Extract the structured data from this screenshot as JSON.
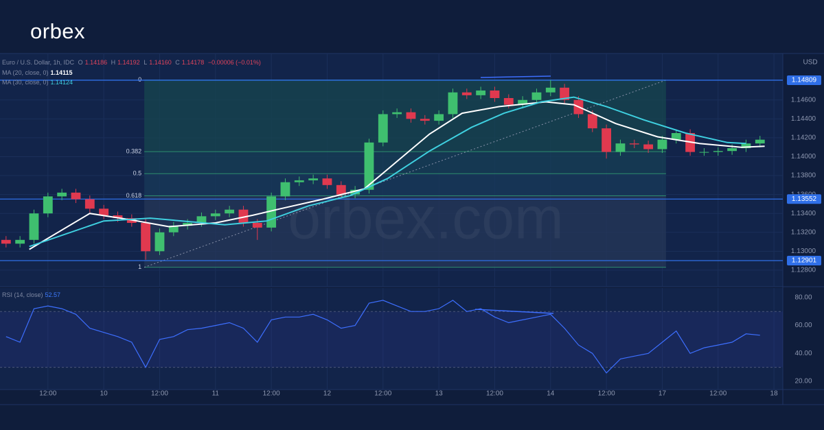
{
  "logo": "orbex",
  "watermark": "orbex.com",
  "chart_data": [
    {
      "type": "candlestick",
      "title": "Euro / U.S. Dollar, 1h, IDC",
      "currency": "USD",
      "ohlc_labels": [
        "O",
        "H",
        "L",
        "C"
      ],
      "ohlc_last": [
        1.14186,
        1.14192,
        1.1416,
        1.14178
      ],
      "ohlc_last_labels": [
        "1.14186",
        "1.14192",
        "1.14160",
        "1.14178"
      ],
      "change_label": "−0.00006 (−0.01%)",
      "up_color": "#3fbf6f",
      "down_color": "#e0394f",
      "grid": true,
      "xlim": [
        1.7,
        169.9
      ],
      "ylim": [
        1.12647,
        1.15077
      ],
      "xticks": [
        {
          "value": 12,
          "label": "12:00"
        },
        {
          "value": 24,
          "label": "10"
        },
        {
          "value": 36,
          "label": "12:00"
        },
        {
          "value": 48,
          "label": "11"
        },
        {
          "value": 60,
          "label": "12:00"
        },
        {
          "value": 72,
          "label": "12"
        },
        {
          "value": 84,
          "label": "12:00"
        },
        {
          "value": 96,
          "label": "13"
        },
        {
          "value": 108,
          "label": "12:00"
        },
        {
          "value": 120,
          "label": "14"
        },
        {
          "value": 132,
          "label": "12:00"
        },
        {
          "value": 144,
          "label": "17"
        },
        {
          "value": 156,
          "label": "12:00"
        },
        {
          "value": 168,
          "label": "18"
        }
      ],
      "yticks": [
        {
          "value": 1.128,
          "label": "1.12800"
        },
        {
          "value": 1.13,
          "label": "1.13000"
        },
        {
          "value": 1.132,
          "label": "1.13200"
        },
        {
          "value": 1.134,
          "label": "1.13400"
        },
        {
          "value": 1.136,
          "label": "1.13600"
        },
        {
          "value": 1.138,
          "label": "1.13800"
        },
        {
          "value": 1.14,
          "label": "1.14000"
        },
        {
          "value": 1.142,
          "label": "1.14200"
        },
        {
          "value": 1.144,
          "label": "1.14400"
        },
        {
          "value": 1.146,
          "label": "1.14600"
        }
      ],
      "x": [
        3,
        6,
        9,
        12,
        15,
        18,
        21,
        24,
        27,
        30,
        33,
        36,
        39,
        42,
        45,
        48,
        51,
        54,
        57,
        60,
        63,
        66,
        69,
        72,
        75,
        78,
        81,
        84,
        87,
        90,
        93,
        96,
        99,
        102,
        105,
        108,
        111,
        114,
        117,
        120,
        123,
        126,
        129,
        132,
        135,
        138,
        141,
        144,
        147,
        150,
        153,
        156,
        159,
        162,
        165
      ],
      "open": [
        1.1312,
        1.1308,
        1.1312,
        1.134,
        1.1358,
        1.1362,
        1.1355,
        1.1345,
        1.1338,
        1.1335,
        1.133,
        1.13,
        1.132,
        1.1327,
        1.133,
        1.1337,
        1.134,
        1.1344,
        1.133,
        1.1325,
        1.1358,
        1.1373,
        1.1375,
        1.1377,
        1.137,
        1.136,
        1.1365,
        1.1415,
        1.1445,
        1.1447,
        1.144,
        1.1438,
        1.1445,
        1.1468,
        1.1465,
        1.147,
        1.1462,
        1.1455,
        1.146,
        1.1468,
        1.1473,
        1.146,
        1.1445,
        1.143,
        1.1405,
        1.1414,
        1.1413,
        1.1408,
        1.1418,
        1.1425,
        1.1405,
        1.1405,
        1.1406,
        1.1409,
        1.1414
      ],
      "high": [
        1.1316,
        1.1316,
        1.1344,
        1.1362,
        1.1366,
        1.1366,
        1.1359,
        1.1349,
        1.1342,
        1.1339,
        1.1334,
        1.1324,
        1.1331,
        1.1334,
        1.1341,
        1.1344,
        1.1348,
        1.1348,
        1.1334,
        1.1362,
        1.1377,
        1.1379,
        1.1381,
        1.1381,
        1.1374,
        1.1369,
        1.1419,
        1.1449,
        1.1451,
        1.1451,
        1.1444,
        1.1449,
        1.1472,
        1.1472,
        1.1474,
        1.1474,
        1.1466,
        1.1464,
        1.1472,
        1.1481,
        1.1477,
        1.1464,
        1.1449,
        1.1434,
        1.1418,
        1.1418,
        1.1417,
        1.1422,
        1.1429,
        1.1429,
        1.1409,
        1.141,
        1.1413,
        1.1418,
        1.1422
      ],
      "low": [
        1.1304,
        1.1304,
        1.1308,
        1.1336,
        1.1354,
        1.1351,
        1.1341,
        1.1334,
        1.1331,
        1.1326,
        1.1291,
        1.1296,
        1.1316,
        1.1323,
        1.1326,
        1.1333,
        1.1336,
        1.1326,
        1.1312,
        1.1321,
        1.1354,
        1.1369,
        1.1371,
        1.1366,
        1.1356,
        1.1356,
        1.1361,
        1.1411,
        1.1441,
        1.1436,
        1.1434,
        1.1434,
        1.1441,
        1.1461,
        1.1461,
        1.1458,
        1.1451,
        1.1451,
        1.1456,
        1.1464,
        1.1456,
        1.1441,
        1.1426,
        1.1398,
        1.1401,
        1.1409,
        1.1404,
        1.1404,
        1.1414,
        1.1401,
        1.1401,
        1.1401,
        1.1402,
        1.1405,
        1.141
      ],
      "close": [
        1.1308,
        1.1312,
        1.134,
        1.1358,
        1.1362,
        1.1355,
        1.1345,
        1.1338,
        1.1335,
        1.133,
        1.13,
        1.132,
        1.1327,
        1.133,
        1.1337,
        1.134,
        1.1344,
        1.133,
        1.1325,
        1.1358,
        1.1373,
        1.1375,
        1.1377,
        1.137,
        1.136,
        1.1365,
        1.1415,
        1.1445,
        1.1447,
        1.144,
        1.1438,
        1.1445,
        1.1468,
        1.1465,
        1.147,
        1.1462,
        1.1455,
        1.146,
        1.1468,
        1.1473,
        1.146,
        1.1445,
        1.143,
        1.1405,
        1.1414,
        1.1413,
        1.1408,
        1.1418,
        1.1425,
        1.1405,
        1.1405,
        1.1406,
        1.1409,
        1.1414,
        1.1418
      ],
      "series": [
        {
          "name": "MA (20, close, 0)",
          "last": 1.14115,
          "color": "#ffffff",
          "x": [
            8,
            21,
            30,
            38,
            48,
            56,
            62,
            71,
            80,
            87,
            94,
            101,
            109,
            119,
            125,
            134,
            143,
            152,
            161,
            166
          ],
          "values": [
            1.1302,
            1.134,
            1.1333,
            1.1326,
            1.133,
            1.1338,
            1.1345,
            1.1355,
            1.1366,
            1.1395,
            1.1424,
            1.1446,
            1.1453,
            1.1458,
            1.1455,
            1.1435,
            1.1421,
            1.1414,
            1.141,
            1.1411
          ]
        },
        {
          "name": "MA (30, close, 0)",
          "last": 1.14124,
          "color": "#3fd0e0",
          "x": [
            8,
            24,
            34,
            50,
            59,
            68,
            77,
            85,
            94,
            103,
            110,
            118,
            125,
            132,
            140,
            149,
            158,
            162
          ],
          "values": [
            1.1305,
            1.1332,
            1.1335,
            1.1328,
            1.1332,
            1.1348,
            1.1359,
            1.1377,
            1.1406,
            1.1431,
            1.1446,
            1.1458,
            1.1463,
            1.1453,
            1.1439,
            1.1425,
            1.1415,
            1.1414
          ]
        }
      ],
      "hlines": [
        {
          "value": 1.14809
        },
        {
          "value": 1.13552
        },
        {
          "value": 1.12901
        }
      ],
      "hline_color": "#2f6fe8",
      "fib": {
        "x": [
          32.7,
          144.8
        ],
        "high": 1.1481,
        "low": 1.1283,
        "levels": [
          0,
          0.382,
          0.5,
          0.618,
          1
        ],
        "zone_colors": [
          "#17454f",
          "#173f55",
          "#183a5a",
          "#263758"
        ],
        "line_color": "#2f8f6f"
      }
    },
    {
      "type": "line",
      "title": "RSI (14, close)",
      "last": 52.57,
      "color": "#3d6fff",
      "xlim": [
        1.7,
        169.9
      ],
      "ylim": [
        14.1,
        86.8
      ],
      "bands": [
        30,
        70
      ],
      "yticks": [
        {
          "value": 20,
          "label": "20.00"
        },
        {
          "value": 40,
          "label": "40.00"
        },
        {
          "value": 60,
          "label": "60.00"
        },
        {
          "value": 80,
          "label": "80.00"
        }
      ],
      "x": [
        3,
        6,
        9,
        12,
        15,
        18,
        21,
        24,
        27,
        30,
        33,
        36,
        39,
        42,
        45,
        48,
        51,
        54,
        57,
        60,
        63,
        66,
        69,
        72,
        75,
        78,
        81,
        84,
        87,
        90,
        93,
        96,
        99,
        102,
        105,
        108,
        111,
        114,
        117,
        120,
        123,
        126,
        129,
        132,
        135,
        138,
        141,
        144,
        147,
        150,
        153,
        156,
        159,
        162,
        165
      ],
      "values": [
        52,
        48,
        72,
        74,
        72,
        68,
        58,
        55,
        52,
        48,
        30,
        50,
        52,
        57,
        58,
        60,
        62,
        58,
        48,
        64,
        66,
        66,
        68,
        64,
        58,
        60,
        76,
        78,
        74,
        70,
        70,
        72,
        78,
        70,
        72,
        66,
        62,
        64,
        66,
        68,
        58,
        46,
        40,
        26,
        36,
        38,
        40,
        48,
        56,
        40,
        44,
        46,
        48,
        54,
        53
      ]
    }
  ]
}
